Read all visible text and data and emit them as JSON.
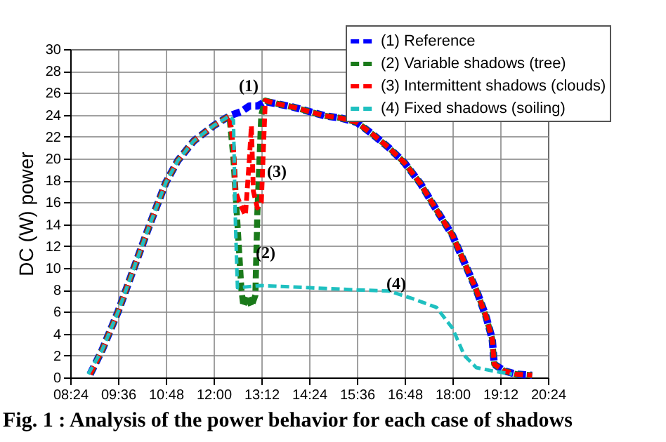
{
  "chart_data": {
    "type": "line",
    "title": "Fig. 1 : Analysis of the power behavior for each case of shadows",
    "ylabel": "DC (W) power",
    "xlim": [
      8.4,
      20.4
    ],
    "ylim": [
      0,
      30
    ],
    "xticks": [
      {
        "value": 8.4,
        "label": "08:24"
      },
      {
        "value": 9.6,
        "label": "09:36"
      },
      {
        "value": 10.8,
        "label": "10:48"
      },
      {
        "value": 12,
        "label": "12:00"
      },
      {
        "value": 13.2,
        "label": "13:12"
      },
      {
        "value": 14.4,
        "label": "14:24"
      },
      {
        "value": 15.6,
        "label": "15:36"
      },
      {
        "value": 16.8,
        "label": "16:48"
      },
      {
        "value": 18,
        "label": "18:00"
      },
      {
        "value": 19.2,
        "label": "19:12"
      },
      {
        "value": 20.4,
        "label": "20:24"
      }
    ],
    "yticks": [
      0,
      2,
      4,
      6,
      8,
      10,
      12,
      14,
      16,
      18,
      20,
      22,
      24,
      26,
      28,
      30
    ],
    "grid": true,
    "legend": "top right",
    "marker": "none",
    "line_style": "dashed",
    "annotations": [
      "(1)",
      "(2)",
      "(3)",
      "(4)"
    ],
    "series": [
      {
        "name": "(1) Reference",
        "color": "#0000ff",
        "x": [
          8.9,
          9.2,
          9.6,
          10.0,
          10.4,
          10.8,
          11.1,
          11.5,
          12.0,
          12.4,
          12.7,
          12.9,
          13.1,
          13.3,
          13.6,
          14.0,
          14.4,
          14.8,
          15.2,
          15.6,
          16.0,
          16.4,
          16.8,
          17.2,
          17.6,
          18.0,
          18.3,
          18.6,
          18.85,
          19.0,
          19.05,
          19.3,
          19.6,
          20.0
        ],
        "values": [
          0.3,
          2.5,
          6,
          10,
          14,
          17.8,
          19.8,
          21.6,
          23,
          23.9,
          24.3,
          24.8,
          24.8,
          25.2,
          25,
          24.7,
          24.3,
          23.9,
          23.7,
          23.3,
          22.2,
          21,
          19.6,
          17.7,
          15.3,
          13,
          10.5,
          8,
          5.5,
          3.5,
          1.2,
          0.6,
          0.3,
          0.2
        ]
      },
      {
        "name": "(2) Variable shadows (tree)",
        "color": "#1a7a1a",
        "x": [
          8.9,
          9.2,
          9.6,
          10.0,
          10.4,
          10.8,
          11.1,
          11.5,
          12.0,
          12.4,
          12.5,
          12.6,
          12.7,
          12.75,
          12.85,
          12.95,
          13.05,
          13.1,
          13.2,
          13.3,
          13.6,
          14.0,
          14.4,
          14.8,
          15.2,
          15.6,
          16.0,
          16.4,
          16.8,
          17.2,
          17.6,
          18.0,
          18.3,
          18.6,
          18.85,
          19.0,
          19.05,
          19.3,
          19.6,
          20.0
        ],
        "values": [
          0.3,
          2.5,
          6,
          10,
          14,
          17.8,
          19.8,
          21.6,
          23,
          23.9,
          20,
          14,
          8,
          6.5,
          7.5,
          6.5,
          7.5,
          15,
          24,
          25.3,
          25,
          24.7,
          24.3,
          23.9,
          23.7,
          23.3,
          22.2,
          21,
          19.6,
          17.7,
          15.3,
          13,
          10.5,
          8,
          5.5,
          3.5,
          1.2,
          0.6,
          0.3,
          0.2
        ]
      },
      {
        "name": "(3) Intermittent shadows (clouds)",
        "color": "#ff0000",
        "x": [
          8.9,
          9.2,
          9.6,
          10.0,
          10.4,
          10.8,
          11.1,
          11.5,
          12.0,
          12.4,
          12.5,
          12.55,
          12.65,
          12.8,
          12.9,
          12.95,
          13.0,
          13.1,
          13.2,
          13.3,
          13.6,
          14.0,
          14.4,
          14.8,
          15.2,
          15.6,
          16.0,
          16.4,
          16.8,
          17.2,
          17.6,
          18.0,
          18.3,
          18.6,
          18.85,
          19.0,
          19.05,
          19.3,
          19.6,
          20.0
        ],
        "values": [
          0.3,
          2.5,
          6,
          10,
          14,
          17.8,
          19.8,
          21.6,
          23,
          23.9,
          21,
          17,
          16,
          14.8,
          20,
          23,
          17,
          15.5,
          16,
          25.3,
          25,
          24.7,
          24.3,
          23.9,
          23.7,
          23.3,
          22.2,
          21,
          19.6,
          17.7,
          15.3,
          13,
          10.5,
          8,
          5.5,
          3.5,
          1.2,
          0.6,
          0.3,
          0.2
        ]
      },
      {
        "name": "(4) Fixed shadows (soiling)",
        "color": "#1fc0c0",
        "x": [
          8.85,
          9.2,
          9.6,
          10.0,
          10.4,
          10.8,
          11.1,
          11.5,
          12.0,
          12.4,
          12.5,
          12.55,
          12.6,
          13.2,
          14.4,
          15.6,
          16.4,
          17.0,
          17.6,
          18.0,
          18.3,
          18.6,
          19.0,
          19.5
        ],
        "values": [
          0.3,
          2.5,
          6,
          10,
          14,
          17.8,
          19.8,
          21.6,
          23,
          23.9,
          23.5,
          14,
          8.2,
          8.4,
          8.2,
          8.0,
          7.9,
          7.2,
          6.4,
          4.5,
          2,
          0.9,
          0.6,
          0.3
        ]
      }
    ]
  }
}
